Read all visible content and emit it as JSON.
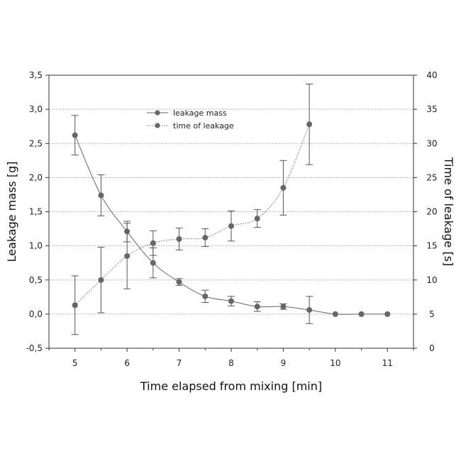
{
  "chart_data": {
    "type": "line",
    "xlabel": "Time elapsed from mixing [min]",
    "ylabel": "Leakage mass [g]",
    "y2label": "Time of leakage [s]",
    "xlim": [
      4.5,
      11.5
    ],
    "ylim": [
      -0.5,
      3.5
    ],
    "y2lim": [
      0,
      40
    ],
    "x_ticks": [
      "5",
      "6",
      "7",
      "8",
      "9",
      "10",
      "11"
    ],
    "y_ticks": [
      "-0,5",
      "0,0",
      "0,5",
      "1,0",
      "1,5",
      "2,0",
      "2,5",
      "3,0",
      "3,5"
    ],
    "y2_ticks": [
      "0",
      "5",
      "10",
      "15",
      "20",
      "25",
      "30",
      "35",
      "40"
    ],
    "grid": "horizontal dotted",
    "legend_position": "top-center",
    "series": [
      {
        "name": "leakage mass",
        "axis": "left",
        "line_style": "solid",
        "color": "#666666",
        "x": [
          5,
          5.5,
          6,
          6.5,
          7,
          7.5,
          8,
          8.5,
          9,
          9.5,
          10,
          10.5,
          11
        ],
        "y": [
          2.62,
          1.74,
          1.21,
          0.75,
          0.47,
          0.26,
          0.19,
          0.11,
          0.11,
          0.06,
          0.0,
          0.0,
          0.0
        ],
        "err": [
          0.29,
          0.3,
          0.15,
          0.22,
          0.05,
          0.09,
          0.07,
          0.07,
          0.04,
          0.2,
          0.0,
          0.0,
          0.0
        ]
      },
      {
        "name": "time of leakage",
        "axis": "right",
        "line_style": "dotted",
        "color": "#666666",
        "x": [
          5,
          5.5,
          6,
          6.5,
          7,
          7.5,
          8,
          8.5,
          9,
          9.5
        ],
        "y": [
          6.3,
          10.0,
          13.5,
          15.4,
          16.0,
          16.2,
          17.9,
          19.0,
          23.5,
          32.8
        ],
        "err": [
          4.3,
          4.8,
          4.8,
          1.8,
          1.6,
          1.3,
          2.2,
          1.3,
          4.0,
          5.9
        ]
      }
    ]
  }
}
